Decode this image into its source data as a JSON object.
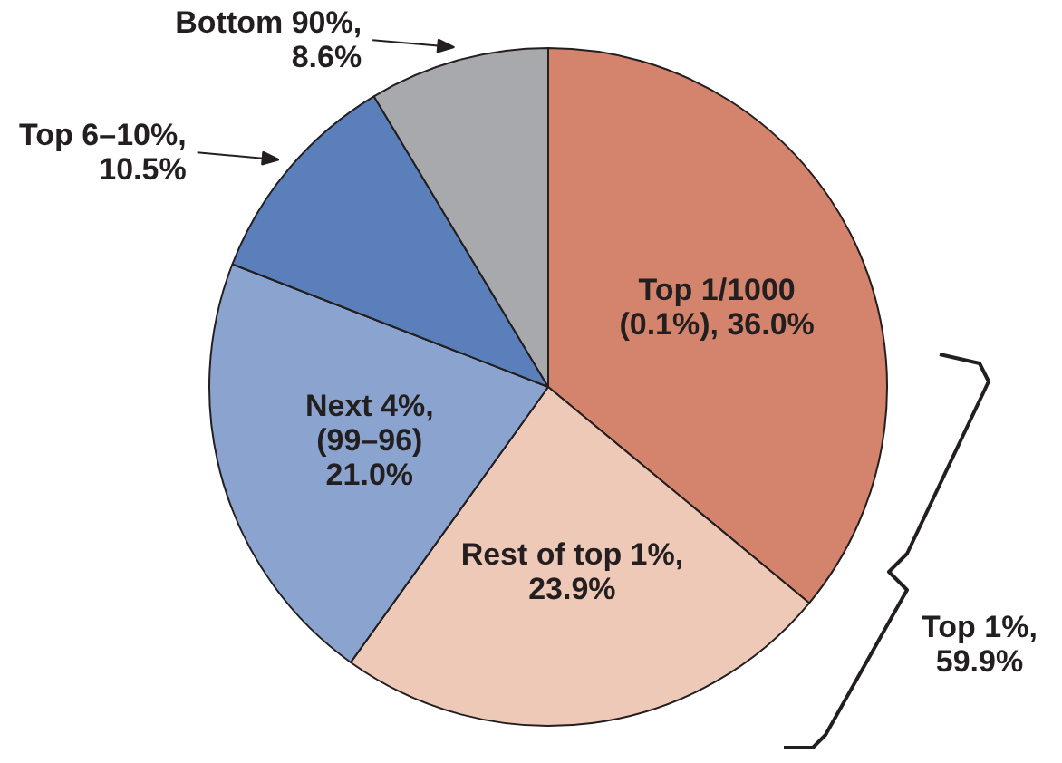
{
  "chart_data": {
    "type": "pie",
    "categories": [
      "Top 1/1000\n(0.1%), 36.0%",
      "Rest of top 1%,\n23.9%",
      "Next 4%,\n(99–96)\n21.0%",
      "Top 6–10%,\n10.5%",
      "Bottom 90%,\n8.6%"
    ],
    "values": [
      36.0,
      23.9,
      21.0,
      10.5,
      8.6
    ],
    "colors": [
      "#d4846c",
      "#efc9b8",
      "#8ba4cf",
      "#5a7fba",
      "#a7a9ac"
    ],
    "annotations": [
      "Top 1%,\n59.9%"
    ]
  }
}
